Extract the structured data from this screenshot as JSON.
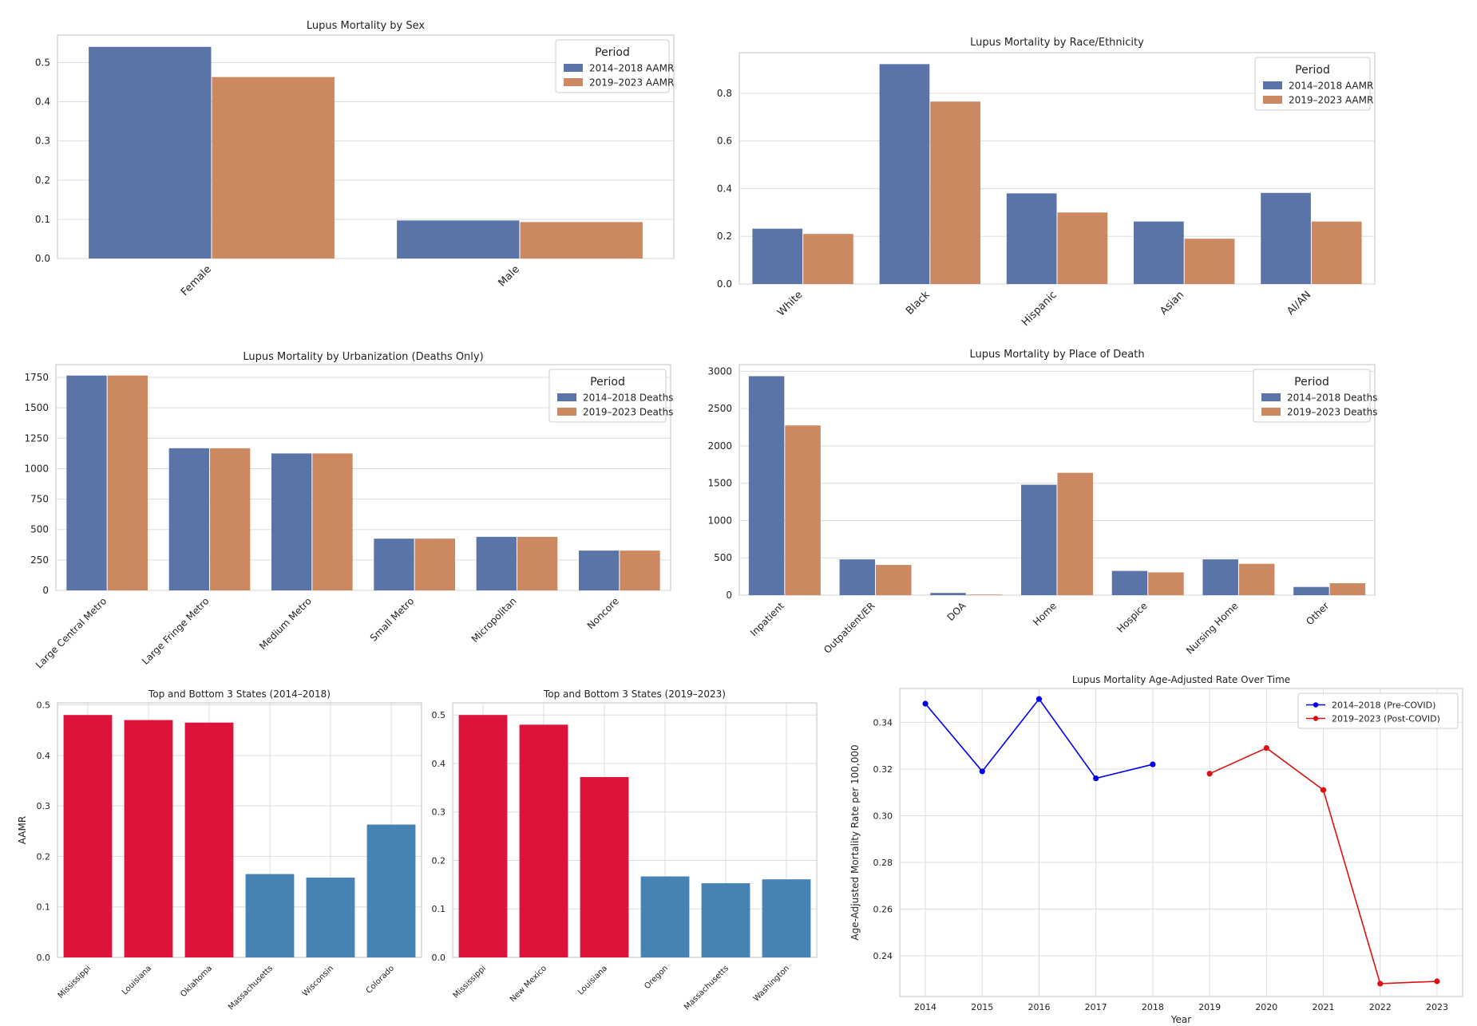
{
  "colors": {
    "period1": "#5a74a8",
    "period2": "#cc8860",
    "top": "#dc143c",
    "bottom": "#4682b4",
    "line1": "#0000ee",
    "line2": "#dd1111",
    "grid": "#dddddd",
    "frame": "#cccccc"
  },
  "chart_data": [
    {
      "id": "sex",
      "type": "bar",
      "title": "Lupus Mortality by Sex",
      "categories": [
        "Female",
        "Male"
      ],
      "series": [
        {
          "name": "2014–2018 AAMR",
          "values": [
            0.54,
            0.097
          ]
        },
        {
          "name": "2019–2023 AAMR",
          "values": [
            0.463,
            0.093
          ]
        }
      ],
      "ylim": [
        0,
        0.57
      ],
      "yticks": [
        0.0,
        0.1,
        0.2,
        0.3,
        0.4,
        0.5
      ],
      "tick_decimals": 1,
      "legend_title": "Period",
      "legend_position": "upper right",
      "grid": true
    },
    {
      "id": "race",
      "type": "bar",
      "title": "Lupus Mortality by Race/Ethnicity",
      "categories": [
        "White",
        "Black",
        "Hispanic",
        "Asian",
        "AI/AN"
      ],
      "series": [
        {
          "name": "2014–2018 AAMR",
          "values": [
            0.232,
            0.922,
            0.38,
            0.262,
            0.382
          ]
        },
        {
          "name": "2019–2023 AAMR",
          "values": [
            0.21,
            0.765,
            0.3,
            0.19,
            0.262
          ]
        }
      ],
      "ylim": [
        0,
        0.97
      ],
      "yticks": [
        0.0,
        0.2,
        0.4,
        0.6,
        0.8
      ],
      "tick_decimals": 1,
      "legend_title": "Period",
      "legend_position": "upper right",
      "grid": true
    },
    {
      "id": "urban",
      "type": "bar",
      "title": "Lupus Mortality by Urbanization (Deaths Only)",
      "categories": [
        "Large Central Metro",
        "Large Fringe Metro",
        "Medium Metro",
        "Small Metro",
        "Micropolitan",
        "Noncore"
      ],
      "series": [
        {
          "name": "2014–2018 Deaths",
          "values": [
            1765,
            1168,
            1125,
            425,
            440,
            327
          ]
        },
        {
          "name": "2019–2023 Deaths",
          "values": [
            1765,
            1168,
            1125,
            425,
            440,
            327
          ]
        }
      ],
      "ylim": [
        0,
        1855
      ],
      "yticks": [
        0,
        250,
        500,
        750,
        1000,
        1250,
        1500,
        1750
      ],
      "tick_decimals": 0,
      "legend_title": "Period",
      "legend_position": "upper right",
      "grid": true
    },
    {
      "id": "place",
      "type": "bar",
      "title": "Lupus Mortality by Place of Death",
      "categories": [
        "Inpatient",
        "Outpatient/ER",
        "DOA",
        "Home",
        "Hospice",
        "Nursing Home",
        "Other"
      ],
      "series": [
        {
          "name": "2014–2018 Deaths",
          "values": [
            2935,
            480,
            30,
            1480,
            325,
            480,
            110
          ]
        },
        {
          "name": "2019–2023 Deaths",
          "values": [
            2275,
            405,
            8,
            1640,
            305,
            420,
            160
          ]
        }
      ],
      "ylim": [
        0,
        3090
      ],
      "yticks": [
        0,
        500,
        1000,
        1500,
        2000,
        2500,
        3000
      ],
      "tick_decimals": 0,
      "legend_title": "Period",
      "legend_position": "upper right",
      "grid": true
    },
    {
      "id": "states1",
      "type": "bar",
      "title": "Top and Bottom 3 States (2014–2018)",
      "categories": [
        "Mississippi",
        "Louisiana",
        "Oklahoma",
        "Massachusetts",
        "Wisconsin",
        "Colorado"
      ],
      "values": [
        0.48,
        0.47,
        0.465,
        0.165,
        0.158,
        0.263
      ],
      "groups": [
        "top",
        "top",
        "top",
        "bottom",
        "bottom",
        "bottom"
      ],
      "ylabel": "AAMR",
      "ylim": [
        0,
        0.504
      ],
      "yticks": [
        0.0,
        0.1,
        0.2,
        0.3,
        0.4,
        0.5
      ],
      "tick_decimals": 1,
      "grid": true
    },
    {
      "id": "states2",
      "type": "bar",
      "title": "Top and Bottom 3 States (2019–2023)",
      "categories": [
        "Mississippi",
        "New Mexico",
        "Louisiana",
        "Oregon",
        "Massachusetts",
        "Washington"
      ],
      "values": [
        0.5,
        0.48,
        0.372,
        0.167,
        0.153,
        0.161
      ],
      "groups": [
        "top",
        "top",
        "top",
        "bottom",
        "bottom",
        "bottom"
      ],
      "ylim": [
        0,
        0.525
      ],
      "yticks": [
        0.0,
        0.1,
        0.2,
        0.3,
        0.4,
        0.5
      ],
      "tick_decimals": 1,
      "grid": true
    },
    {
      "id": "trend",
      "type": "line",
      "title": "Lupus Mortality Age-Adjusted Rate Over Time",
      "xlabel": "Year",
      "ylabel": "Age-Adjusted Mortality Rate per 100,000",
      "x": [
        2014,
        2015,
        2016,
        2017,
        2018,
        2019,
        2020,
        2021,
        2022,
        2023
      ],
      "series": [
        {
          "name": "2014–2018 (Pre-COVID)",
          "x": [
            2014,
            2015,
            2016,
            2017,
            2018
          ],
          "values": [
            0.348,
            0.319,
            0.35,
            0.316,
            0.322
          ]
        },
        {
          "name": "2019–2023 (Post-COVID)",
          "x": [
            2019,
            2020,
            2021,
            2022,
            2023
          ],
          "values": [
            0.318,
            0.329,
            0.311,
            0.228,
            0.229
          ]
        }
      ],
      "xlim": [
        2013.55,
        2023.45
      ],
      "ylim": [
        0.2225,
        0.3545
      ],
      "yticks": [
        0.24,
        0.26,
        0.28,
        0.3,
        0.32,
        0.34
      ],
      "tick_decimals": 2,
      "legend_position": "upper right",
      "grid": true
    }
  ]
}
